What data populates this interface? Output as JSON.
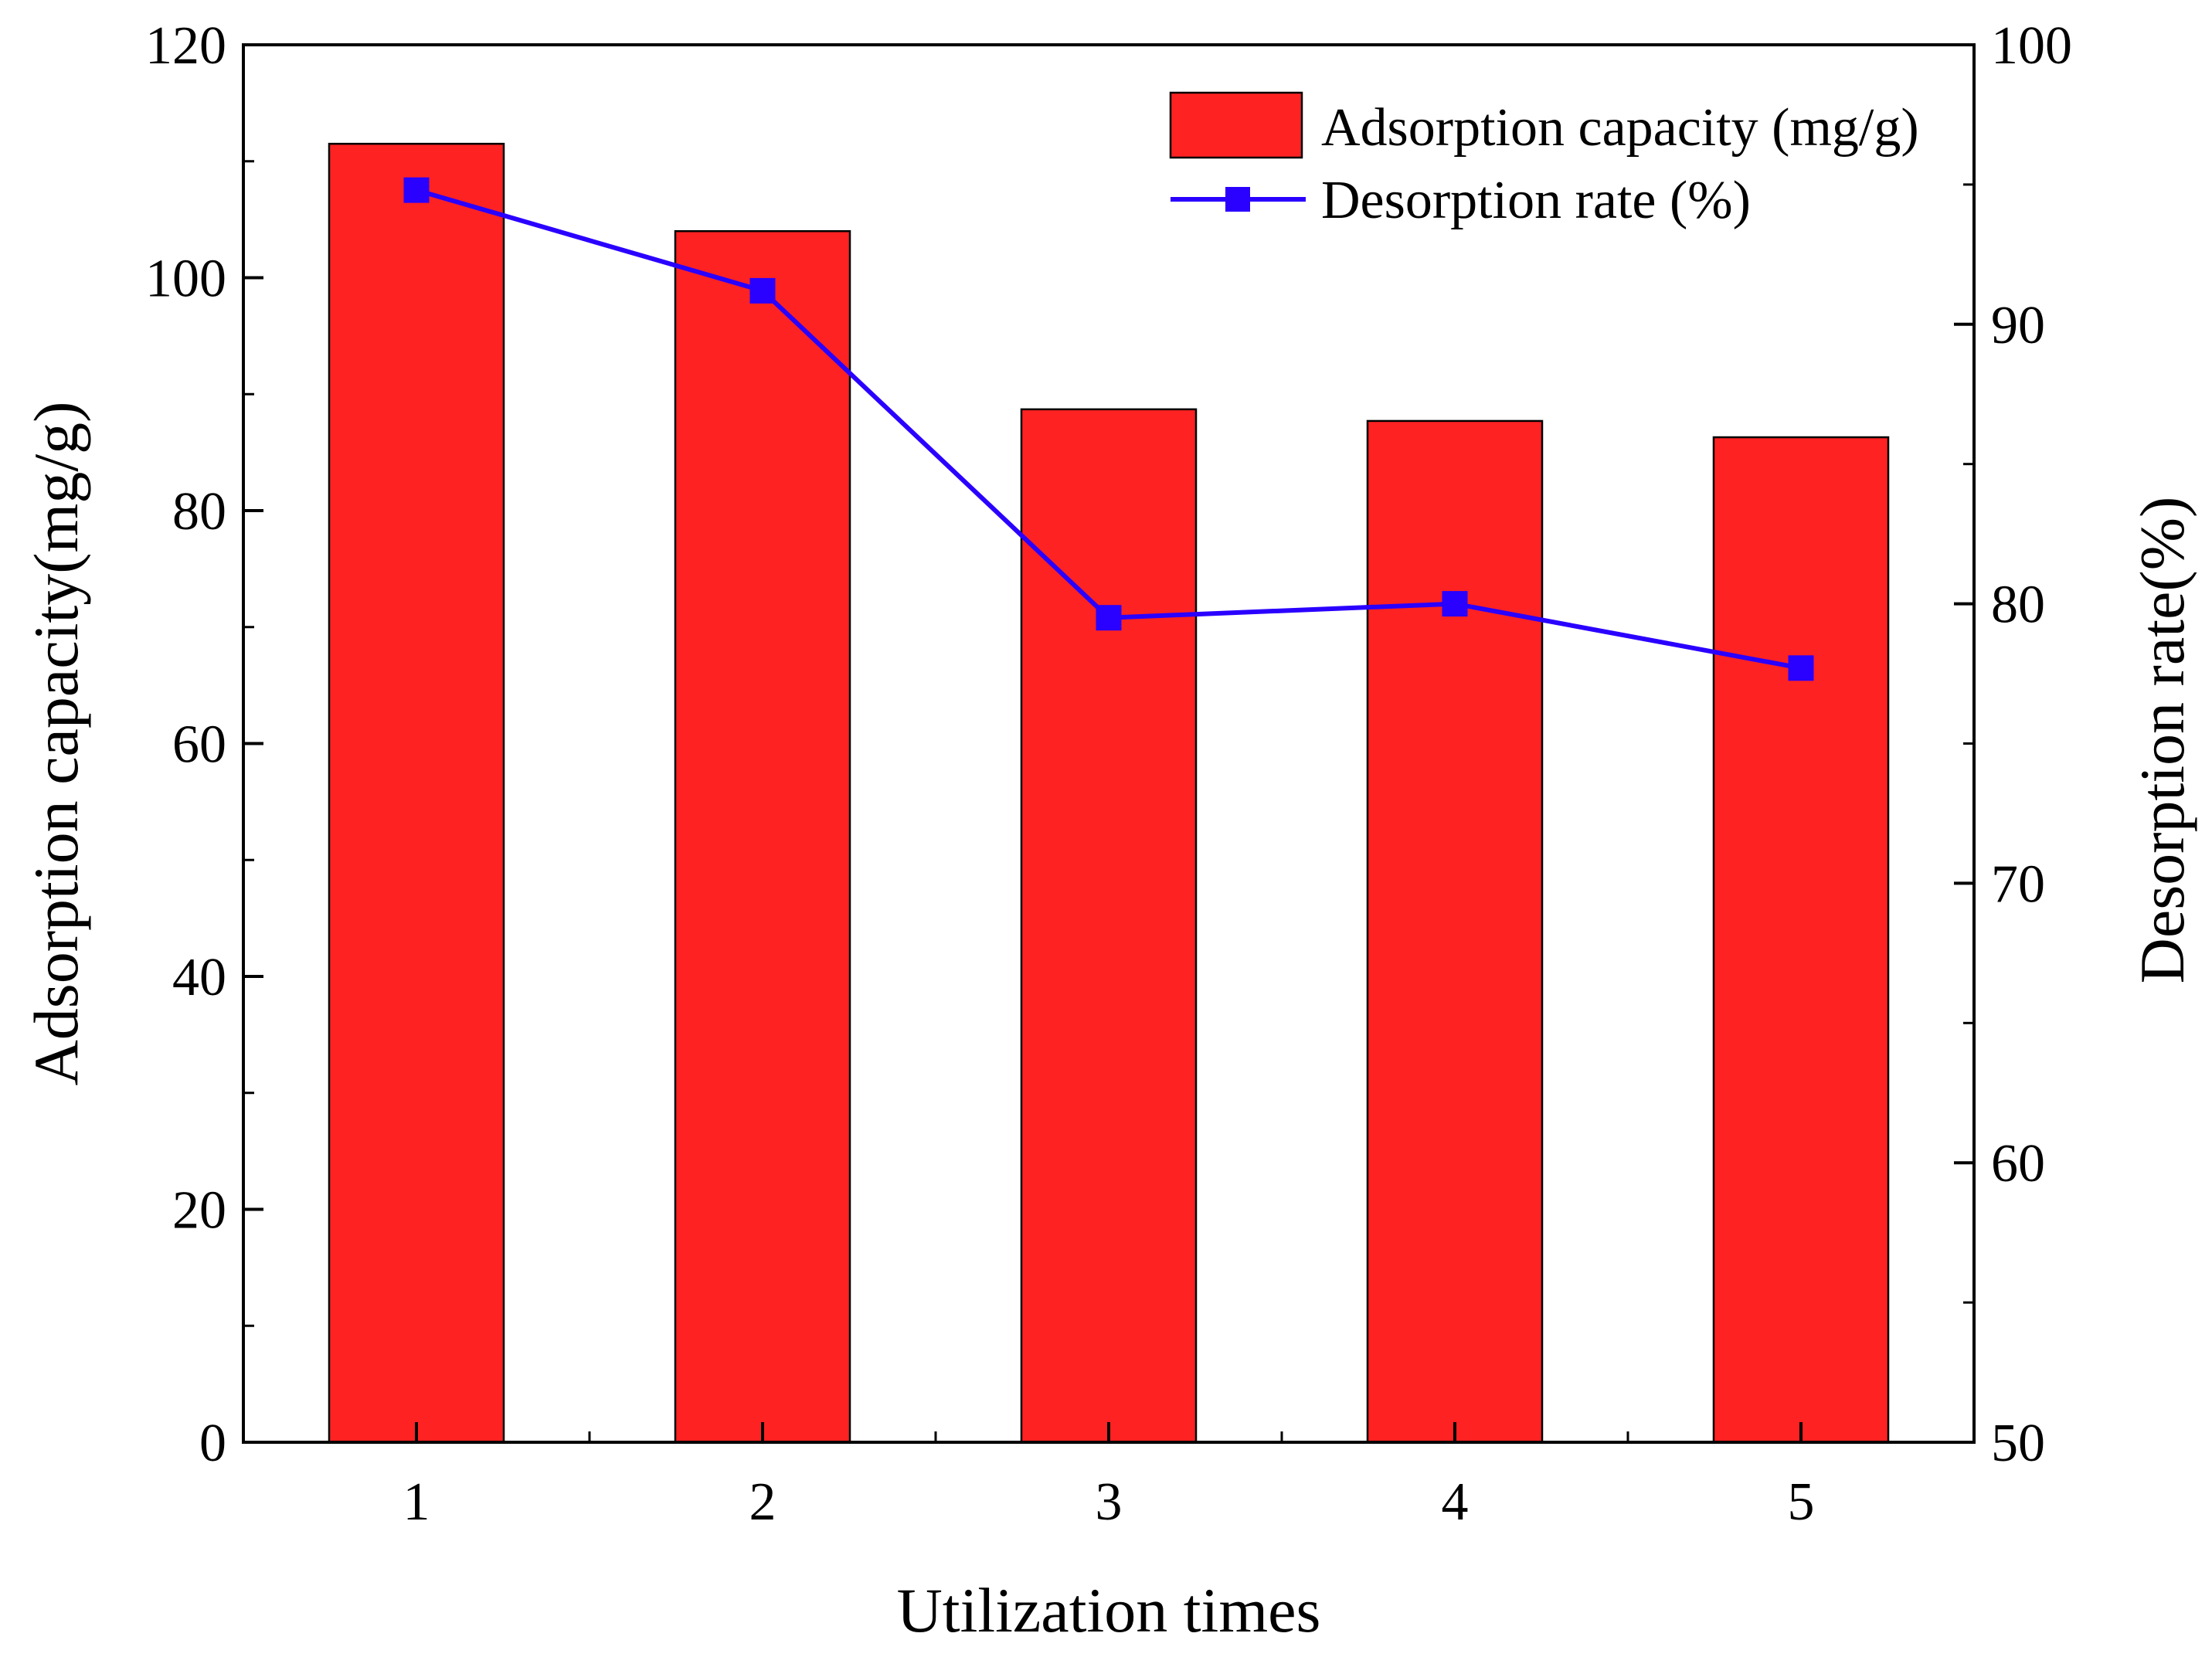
{
  "chart_data": {
    "type": "bar+line",
    "xlabel": "Utilization times",
    "categories": [
      "1",
      "2",
      "3",
      "4",
      "5"
    ],
    "series": [
      {
        "name": "Adsorption capacity (mg/g)",
        "type": "bar",
        "axis": "left",
        "color": "#ff2222",
        "values": [
          111.5,
          104.0,
          88.7,
          87.7,
          86.3
        ]
      },
      {
        "name": "Desorption rate (%)",
        "type": "line",
        "axis": "right",
        "color": "#2a00ff",
        "marker": "square",
        "values": [
          94.8,
          91.2,
          79.5,
          80.0,
          77.7
        ]
      }
    ],
    "y_left": {
      "label": "Adsorption capacity(mg/g)",
      "ylim": [
        0,
        120
      ],
      "ticks": [
        "0",
        "20",
        "40",
        "60",
        "80",
        "100",
        "120"
      ]
    },
    "y_right": {
      "label": "Desorption rate(%)",
      "ylim": [
        50,
        100
      ],
      "ticks": [
        "50",
        "60",
        "70",
        "80",
        "90",
        "100"
      ]
    },
    "legend": {
      "position": "top-right",
      "entries": [
        "Adsorption capacity (mg/g)",
        "Desorption rate (%)"
      ]
    },
    "grid": false
  }
}
